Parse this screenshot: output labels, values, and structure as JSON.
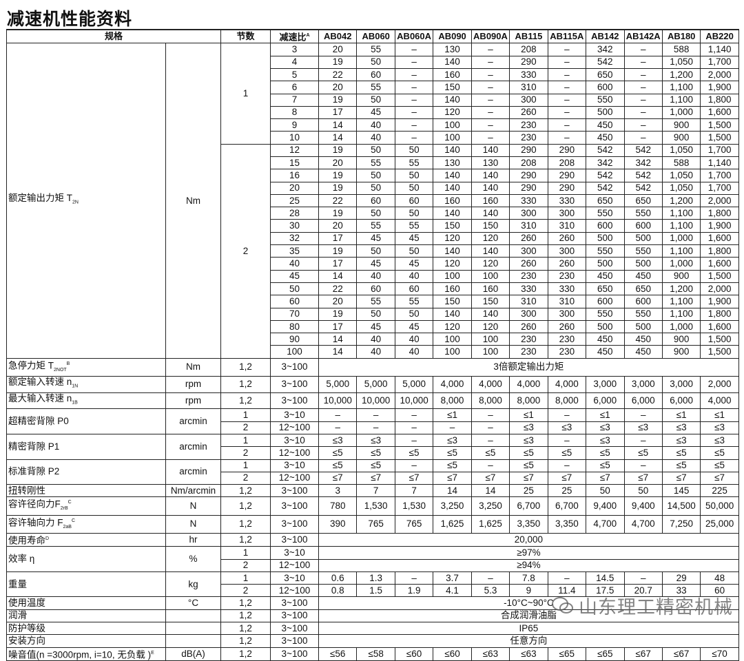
{
  "title": "减速机性能资料",
  "header": {
    "spec": "规格",
    "stages": "节数",
    "ratio": "减速比",
    "ratio_sup": "A",
    "models": [
      "AB042",
      "AB060",
      "AB060A",
      "AB090",
      "AB090A",
      "AB115",
      "AB115A",
      "AB142",
      "AB142A",
      "AB180",
      "AB220"
    ]
  },
  "sections": [
    {
      "label": "额定输出力矩 T",
      "sub": "2N",
      "sup": "",
      "unit": "Nm",
      "groups": [
        {
          "stage": "1",
          "rows": [
            {
              "ratio": "3",
              "values": [
                "20",
                "55",
                "–",
                "130",
                "–",
                "208",
                "–",
                "342",
                "–",
                "588",
                "1,140"
              ]
            },
            {
              "ratio": "4",
              "values": [
                "19",
                "50",
                "–",
                "140",
                "–",
                "290",
                "–",
                "542",
                "–",
                "1,050",
                "1,700"
              ]
            },
            {
              "ratio": "5",
              "values": [
                "22",
                "60",
                "–",
                "160",
                "–",
                "330",
                "–",
                "650",
                "–",
                "1,200",
                "2,000"
              ]
            },
            {
              "ratio": "6",
              "values": [
                "20",
                "55",
                "–",
                "150",
                "–",
                "310",
                "–",
                "600",
                "–",
                "1,100",
                "1,900"
              ]
            },
            {
              "ratio": "7",
              "values": [
                "19",
                "50",
                "–",
                "140",
                "–",
                "300",
                "–",
                "550",
                "–",
                "1,100",
                "1,800"
              ]
            },
            {
              "ratio": "8",
              "values": [
                "17",
                "45",
                "–",
                "120",
                "–",
                "260",
                "–",
                "500",
                "–",
                "1,000",
                "1,600"
              ]
            },
            {
              "ratio": "9",
              "values": [
                "14",
                "40",
                "–",
                "100",
                "–",
                "230",
                "–",
                "450",
                "–",
                "900",
                "1,500"
              ]
            },
            {
              "ratio": "10",
              "values": [
                "14",
                "40",
                "–",
                "100",
                "–",
                "230",
                "–",
                "450",
                "–",
                "900",
                "1,500"
              ]
            }
          ]
        },
        {
          "stage": "2",
          "rows": [
            {
              "ratio": "12",
              "values": [
                "19",
                "50",
                "50",
                "140",
                "140",
                "290",
                "290",
                "542",
                "542",
                "1,050",
                "1,700"
              ]
            },
            {
              "ratio": "15",
              "values": [
                "20",
                "55",
                "55",
                "130",
                "130",
                "208",
                "208",
                "342",
                "342",
                "588",
                "1,140"
              ]
            },
            {
              "ratio": "16",
              "values": [
                "19",
                "50",
                "50",
                "140",
                "140",
                "290",
                "290",
                "542",
                "542",
                "1,050",
                "1,700"
              ]
            },
            {
              "ratio": "20",
              "values": [
                "19",
                "50",
                "50",
                "140",
                "140",
                "290",
                "290",
                "542",
                "542",
                "1,050",
                "1,700"
              ]
            },
            {
              "ratio": "25",
              "values": [
                "22",
                "60",
                "60",
                "160",
                "160",
                "330",
                "330",
                "650",
                "650",
                "1,200",
                "2,000"
              ]
            },
            {
              "ratio": "28",
              "values": [
                "19",
                "50",
                "50",
                "140",
                "140",
                "300",
                "300",
                "550",
                "550",
                "1,100",
                "1,800"
              ]
            },
            {
              "ratio": "30",
              "values": [
                "20",
                "55",
                "55",
                "150",
                "150",
                "310",
                "310",
                "600",
                "600",
                "1,100",
                "1,900"
              ]
            },
            {
              "ratio": "32",
              "values": [
                "17",
                "45",
                "45",
                "120",
                "120",
                "260",
                "260",
                "500",
                "500",
                "1,000",
                "1,600"
              ]
            },
            {
              "ratio": "35",
              "values": [
                "19",
                "50",
                "50",
                "140",
                "140",
                "300",
                "300",
                "550",
                "550",
                "1,100",
                "1,800"
              ]
            },
            {
              "ratio": "40",
              "values": [
                "17",
                "45",
                "45",
                "120",
                "120",
                "260",
                "260",
                "500",
                "500",
                "1,000",
                "1,600"
              ]
            },
            {
              "ratio": "45",
              "values": [
                "14",
                "40",
                "40",
                "100",
                "100",
                "230",
                "230",
                "450",
                "450",
                "900",
                "1,500"
              ]
            },
            {
              "ratio": "50",
              "values": [
                "22",
                "60",
                "60",
                "160",
                "160",
                "330",
                "330",
                "650",
                "650",
                "1,200",
                "2,000"
              ]
            },
            {
              "ratio": "60",
              "values": [
                "20",
                "55",
                "55",
                "150",
                "150",
                "310",
                "310",
                "600",
                "600",
                "1,100",
                "1,900"
              ]
            },
            {
              "ratio": "70",
              "values": [
                "19",
                "50",
                "50",
                "140",
                "140",
                "300",
                "300",
                "550",
                "550",
                "1,100",
                "1,800"
              ]
            },
            {
              "ratio": "80",
              "values": [
                "17",
                "45",
                "45",
                "120",
                "120",
                "260",
                "260",
                "500",
                "500",
                "1,000",
                "1,600"
              ]
            },
            {
              "ratio": "90",
              "values": [
                "14",
                "40",
                "40",
                "100",
                "100",
                "230",
                "230",
                "450",
                "450",
                "900",
                "1,500"
              ]
            },
            {
              "ratio": "100",
              "values": [
                "14",
                "40",
                "40",
                "100",
                "100",
                "230",
                "230",
                "450",
                "450",
                "900",
                "1,500"
              ]
            }
          ]
        }
      ]
    },
    {
      "label": "急停力矩 T",
      "sub": "2NOT",
      "sup": "B",
      "unit": "Nm",
      "groups": [
        {
          "stage": "1,2",
          "rows": [
            {
              "ratio": "3~100",
              "span": "3倍额定输出力矩"
            }
          ]
        }
      ]
    },
    {
      "label": "额定输入转速 n",
      "sub": "1N",
      "sup": "",
      "unit": "rpm",
      "groups": [
        {
          "stage": "1,2",
          "rows": [
            {
              "ratio": "3~100",
              "values": [
                "5,000",
                "5,000",
                "5,000",
                "4,000",
                "4,000",
                "4,000",
                "4,000",
                "3,000",
                "3,000",
                "3,000",
                "2,000"
              ]
            }
          ]
        }
      ]
    },
    {
      "label": "最大输入转速 n",
      "sub": "1B",
      "sup": "",
      "unit": "rpm",
      "groups": [
        {
          "stage": "1,2",
          "rows": [
            {
              "ratio": "3~100",
              "values": [
                "10,000",
                "10,000",
                "10,000",
                "8,000",
                "8,000",
                "8,000",
                "8,000",
                "6,000",
                "6,000",
                "6,000",
                "4,000"
              ]
            }
          ]
        }
      ]
    },
    {
      "label": "超精密背隙 P0",
      "sub": "",
      "sup": "",
      "unit": "arcmin",
      "groups": [
        {
          "stage": "1",
          "rows": [
            {
              "ratio": "3~10",
              "values": [
                "–",
                "–",
                "–",
                "≤1",
                "–",
                "≤1",
                "–",
                "≤1",
                "–",
                "≤1",
                "≤1"
              ]
            }
          ]
        },
        {
          "stage": "2",
          "rows": [
            {
              "ratio": "12~100",
              "values": [
                "–",
                "–",
                "–",
                "–",
                "–",
                "≤3",
                "≤3",
                "≤3",
                "≤3",
                "≤3",
                "≤3"
              ]
            }
          ]
        }
      ]
    },
    {
      "label": "精密背隙 P1",
      "sub": "",
      "sup": "",
      "unit": "arcmin",
      "groups": [
        {
          "stage": "1",
          "rows": [
            {
              "ratio": "3~10",
              "values": [
                "≤3",
                "≤3",
                "–",
                "≤3",
                "–",
                "≤3",
                "–",
                "≤3",
                "–",
                "≤3",
                "≤3"
              ]
            }
          ]
        },
        {
          "stage": "2",
          "rows": [
            {
              "ratio": "12~100",
              "values": [
                "≤5",
                "≤5",
                "≤5",
                "≤5",
                "≤5",
                "≤5",
                "≤5",
                "≤5",
                "≤5",
                "≤5",
                "≤5"
              ]
            }
          ]
        }
      ]
    },
    {
      "label": "标准背隙 P2",
      "sub": "",
      "sup": "",
      "unit": "arcmin",
      "groups": [
        {
          "stage": "1",
          "rows": [
            {
              "ratio": "3~10",
              "values": [
                "≤5",
                "≤5",
                "–",
                "≤5",
                "–",
                "≤5",
                "–",
                "≤5",
                "–",
                "≤5",
                "≤5"
              ]
            }
          ]
        },
        {
          "stage": "2",
          "rows": [
            {
              "ratio": "12~100",
              "values": [
                "≤7",
                "≤7",
                "≤7",
                "≤7",
                "≤7",
                "≤7",
                "≤7",
                "≤7",
                "≤7",
                "≤7",
                "≤7"
              ]
            }
          ]
        }
      ]
    },
    {
      "label": "扭转刚性",
      "sub": "",
      "sup": "",
      "unit": "Nm/arcmin",
      "groups": [
        {
          "stage": "1,2",
          "rows": [
            {
              "ratio": "3~100",
              "values": [
                "3",
                "7",
                "7",
                "14",
                "14",
                "25",
                "25",
                "50",
                "50",
                "145",
                "225"
              ]
            }
          ]
        }
      ]
    },
    {
      "label": "容许径向力F",
      "sub": "2rB",
      "sup": "C",
      "unit": "N",
      "groups": [
        {
          "stage": "1,2",
          "rows": [
            {
              "ratio": "3~100",
              "values": [
                "780",
                "1,530",
                "1,530",
                "3,250",
                "3,250",
                "6,700",
                "6,700",
                "9,400",
                "9,400",
                "14,500",
                "50,000"
              ]
            }
          ]
        }
      ]
    },
    {
      "label": "容许轴向力 F",
      "sub": "2aB",
      "sup": "C",
      "unit": "N",
      "groups": [
        {
          "stage": "1,2",
          "rows": [
            {
              "ratio": "3~100",
              "values": [
                "390",
                "765",
                "765",
                "1,625",
                "1,625",
                "3,350",
                "3,350",
                "4,700",
                "4,700",
                "7,250",
                "25,000"
              ]
            }
          ]
        }
      ]
    },
    {
      "label": "使用寿命",
      "sub": "",
      "sup": "D",
      "unit": "hr",
      "groups": [
        {
          "stage": "1,2",
          "rows": [
            {
              "ratio": "3~100",
              "span": "20,000"
            }
          ]
        }
      ]
    },
    {
      "label": "效率 η",
      "sub": "",
      "sup": "",
      "unit": "%",
      "groups": [
        {
          "stage": "1",
          "rows": [
            {
              "ratio": "3~10",
              "span": "≥97%"
            }
          ]
        },
        {
          "stage": "2",
          "rows": [
            {
              "ratio": "12~100",
              "span": "≥94%"
            }
          ]
        }
      ]
    },
    {
      "label": "重量",
      "sub": "",
      "sup": "",
      "unit": "kg",
      "groups": [
        {
          "stage": "1",
          "rows": [
            {
              "ratio": "3~10",
              "values": [
                "0.6",
                "1.3",
                "–",
                "3.7",
                "–",
                "7.8",
                "–",
                "14.5",
                "–",
                "29",
                "48"
              ]
            }
          ]
        },
        {
          "stage": "2",
          "rows": [
            {
              "ratio": "12~100",
              "values": [
                "0.8",
                "1.5",
                "1.9",
                "4.1",
                "5.3",
                "9",
                "11.4",
                "17.5",
                "20.7",
                "33",
                "60"
              ]
            }
          ]
        }
      ]
    },
    {
      "label": "使用温度",
      "sub": "",
      "sup": "",
      "unit": "°C",
      "groups": [
        {
          "stage": "1,2",
          "rows": [
            {
              "ratio": "3~100",
              "span": "-10°C~90°C"
            }
          ]
        }
      ]
    },
    {
      "label": "润滑",
      "sub": "",
      "sup": "",
      "unit": "",
      "groups": [
        {
          "stage": "1,2",
          "rows": [
            {
              "ratio": "3~100",
              "span": "合成润滑油脂"
            }
          ]
        }
      ]
    },
    {
      "label": "防护等级",
      "sub": "",
      "sup": "",
      "unit": "",
      "groups": [
        {
          "stage": "1,2",
          "rows": [
            {
              "ratio": "3~100",
              "span": "IP65"
            }
          ]
        }
      ]
    },
    {
      "label": "安装方向",
      "sub": "",
      "sup": "",
      "unit": "",
      "groups": [
        {
          "stage": "1,2",
          "rows": [
            {
              "ratio": "3~100",
              "span": "任意方向"
            }
          ]
        }
      ]
    },
    {
      "label": "噪音值(n =3000rpm, i=10, 无负载 )",
      "sub": "",
      "sup": "E",
      "unit": "dB(A)",
      "groups": [
        {
          "stage": "1,2",
          "rows": [
            {
              "ratio": "3~100",
              "values": [
                "≤56",
                "≤58",
                "≤60",
                "≤60",
                "≤63",
                "≤63",
                "≤65",
                "≤65",
                "≤67",
                "≤67",
                "≤70"
              ]
            }
          ]
        }
      ]
    }
  ],
  "watermark": {
    "text": "山东理工精密机械",
    "icon": "wechat-icon"
  }
}
